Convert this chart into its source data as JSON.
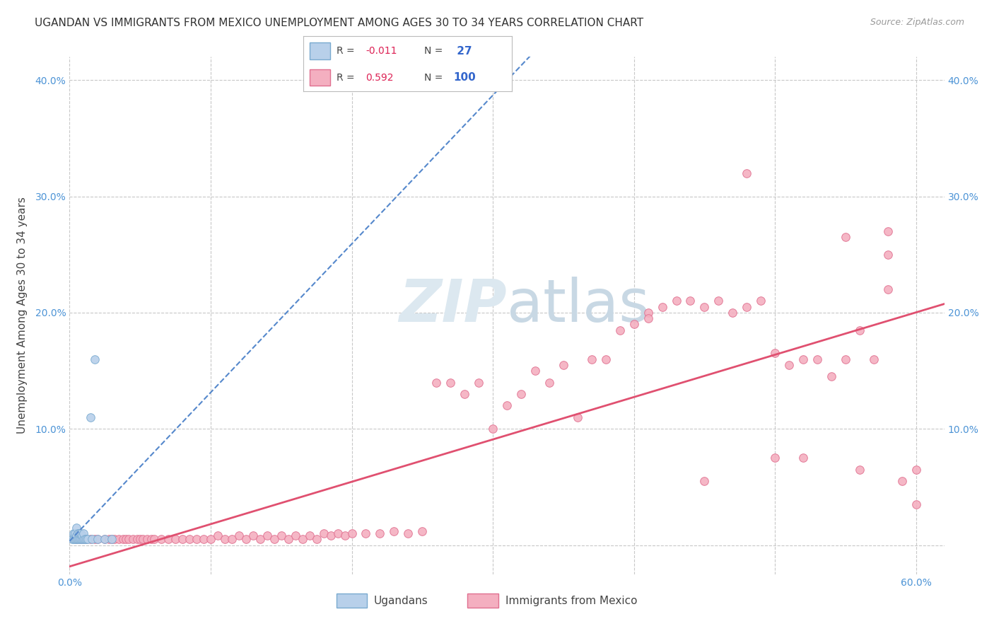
{
  "title": "UGANDAN VS IMMIGRANTS FROM MEXICO UNEMPLOYMENT AMONG AGES 30 TO 34 YEARS CORRELATION CHART",
  "source": "Source: ZipAtlas.com",
  "ylabel": "Unemployment Among Ages 30 to 34 years",
  "xlim": [
    0.0,
    0.62
  ],
  "ylim": [
    -0.025,
    0.42
  ],
  "xticks": [
    0.0,
    0.1,
    0.2,
    0.3,
    0.4,
    0.5,
    0.6
  ],
  "xticklabels": [
    "0.0%",
    "",
    "",
    "",
    "",
    "",
    "60.0%"
  ],
  "yticks": [
    0.0,
    0.1,
    0.2,
    0.3,
    0.4
  ],
  "yticklabels": [
    "",
    "10.0%",
    "20.0%",
    "30.0%",
    "40.0%"
  ],
  "background_color": "#ffffff",
  "grid_color": "#c8c8c8",
  "watermark_color": "#dce8f0",
  "legend_R1": "-0.011",
  "legend_N1": "27",
  "legend_R2": "0.592",
  "legend_N2": "100",
  "series1_label": "Ugandans",
  "series2_label": "Immigrants from Mexico",
  "series1_color": "#b8d0ea",
  "series2_color": "#f4afc0",
  "series1_edge_color": "#7aaad0",
  "series2_edge_color": "#e07090",
  "trendline1_color": "#5588cc",
  "trendline2_color": "#e05070",
  "marker_size": 70,
  "title_fontsize": 11,
  "axis_label_fontsize": 11,
  "tick_fontsize": 10,
  "tick_color": "#4d94d6",
  "ugandan_x": [
    0.002,
    0.003,
    0.003,
    0.004,
    0.004,
    0.005,
    0.005,
    0.005,
    0.006,
    0.006,
    0.007,
    0.007,
    0.008,
    0.008,
    0.009,
    0.009,
    0.01,
    0.01,
    0.011,
    0.012,
    0.013,
    0.015,
    0.016,
    0.018,
    0.02,
    0.025,
    0.03
  ],
  "ugandan_y": [
    0.005,
    0.005,
    0.01,
    0.005,
    0.01,
    0.005,
    0.008,
    0.015,
    0.005,
    0.01,
    0.005,
    0.01,
    0.005,
    0.01,
    0.005,
    0.008,
    0.005,
    0.01,
    0.005,
    0.005,
    0.005,
    0.11,
    0.005,
    0.16,
    0.005,
    0.005,
    0.005
  ],
  "mexico_x": [
    0.005,
    0.008,
    0.01,
    0.012,
    0.015,
    0.018,
    0.02,
    0.025,
    0.028,
    0.03,
    0.032,
    0.035,
    0.038,
    0.04,
    0.042,
    0.045,
    0.048,
    0.05,
    0.052,
    0.055,
    0.058,
    0.06,
    0.065,
    0.07,
    0.075,
    0.08,
    0.085,
    0.09,
    0.095,
    0.1,
    0.105,
    0.11,
    0.115,
    0.12,
    0.125,
    0.13,
    0.135,
    0.14,
    0.145,
    0.15,
    0.155,
    0.16,
    0.165,
    0.17,
    0.175,
    0.18,
    0.185,
    0.19,
    0.195,
    0.2,
    0.21,
    0.22,
    0.23,
    0.24,
    0.25,
    0.26,
    0.27,
    0.28,
    0.29,
    0.3,
    0.31,
    0.32,
    0.33,
    0.34,
    0.35,
    0.36,
    0.37,
    0.38,
    0.39,
    0.4,
    0.41,
    0.42,
    0.43,
    0.44,
    0.45,
    0.46,
    0.47,
    0.48,
    0.49,
    0.5,
    0.51,
    0.52,
    0.53,
    0.54,
    0.55,
    0.56,
    0.57,
    0.58,
    0.59,
    0.6,
    0.41,
    0.45,
    0.52,
    0.55,
    0.58,
    0.6,
    0.48,
    0.5,
    0.56,
    0.58
  ],
  "mexico_y": [
    0.005,
    0.005,
    0.005,
    0.005,
    0.005,
    0.005,
    0.005,
    0.005,
    0.005,
    0.005,
    0.005,
    0.005,
    0.005,
    0.005,
    0.005,
    0.005,
    0.005,
    0.005,
    0.005,
    0.005,
    0.005,
    0.005,
    0.005,
    0.005,
    0.005,
    0.005,
    0.005,
    0.005,
    0.005,
    0.005,
    0.008,
    0.005,
    0.005,
    0.008,
    0.005,
    0.008,
    0.005,
    0.008,
    0.005,
    0.008,
    0.005,
    0.008,
    0.005,
    0.008,
    0.005,
    0.01,
    0.008,
    0.01,
    0.008,
    0.01,
    0.01,
    0.01,
    0.012,
    0.01,
    0.012,
    0.14,
    0.14,
    0.13,
    0.14,
    0.1,
    0.12,
    0.13,
    0.15,
    0.14,
    0.155,
    0.11,
    0.16,
    0.16,
    0.185,
    0.19,
    0.2,
    0.205,
    0.21,
    0.21,
    0.205,
    0.21,
    0.2,
    0.205,
    0.21,
    0.165,
    0.155,
    0.16,
    0.16,
    0.145,
    0.16,
    0.185,
    0.16,
    0.22,
    0.055,
    0.035,
    0.195,
    0.055,
    0.075,
    0.265,
    0.27,
    0.065,
    0.32,
    0.075,
    0.065,
    0.25
  ]
}
